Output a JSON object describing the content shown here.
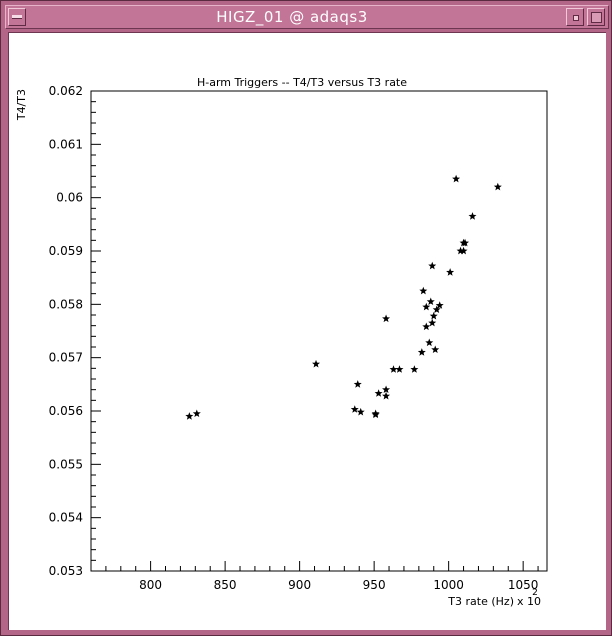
{
  "window": {
    "title": "HIGZ_01 @ adaqs3",
    "colors": {
      "frame": "#b46688",
      "titlebar": "#c27596",
      "title_text": "#ffffff"
    },
    "icons": {
      "menu": "window-menu-icon",
      "minimize": "minimize-icon",
      "maximize": "maximize-icon"
    }
  },
  "chart_data": {
    "type": "scatter",
    "title": "H-arm Triggers --    T4/T3 versus T3 rate",
    "xlabel": "T3 rate (Hz)",
    "x_multiplier": "x 10",
    "x_multiplier_exp": "2",
    "ylabel": "T4/T3",
    "xlim": [
      760,
      1066
    ],
    "ylim": [
      0.053,
      0.062
    ],
    "xticks": [
      800,
      850,
      900,
      950,
      1000,
      1050
    ],
    "yticks": [
      0.053,
      0.054,
      0.055,
      0.056,
      0.057,
      0.058,
      0.059,
      0.06,
      0.061,
      0.062
    ],
    "ytick_labels": [
      "0.053",
      "0.054",
      "0.055",
      "0.056",
      "0.057",
      "0.058",
      "0.059",
      "0.06",
      "0.061",
      "0.062"
    ],
    "grid": false,
    "marker": "star",
    "points": [
      [
        826,
        0.0559
      ],
      [
        831,
        0.05595
      ],
      [
        911,
        0.05688
      ],
      [
        937,
        0.05603
      ],
      [
        939,
        0.0565
      ],
      [
        941,
        0.05598
      ],
      [
        951,
        0.05593
      ],
      [
        951,
        0.05595
      ],
      [
        953,
        0.05633
      ],
      [
        958,
        0.05628
      ],
      [
        958,
        0.0564
      ],
      [
        958,
        0.05773
      ],
      [
        963,
        0.05678
      ],
      [
        967,
        0.05678
      ],
      [
        977,
        0.05678
      ],
      [
        982,
        0.0571
      ],
      [
        983,
        0.05825
      ],
      [
        985,
        0.05795
      ],
      [
        985,
        0.05758
      ],
      [
        987,
        0.05728
      ],
      [
        988,
        0.05805
      ],
      [
        989,
        0.05765
      ],
      [
        989,
        0.05872
      ],
      [
        990,
        0.05778
      ],
      [
        991,
        0.05715
      ],
      [
        992,
        0.0579
      ],
      [
        994,
        0.05798
      ],
      [
        1001,
        0.0586
      ],
      [
        1005,
        0.06035
      ],
      [
        1008,
        0.059
      ],
      [
        1010,
        0.059
      ],
      [
        1010,
        0.05915
      ],
      [
        1011,
        0.05915
      ],
      [
        1016,
        0.05965
      ],
      [
        1033,
        0.0602
      ]
    ]
  }
}
